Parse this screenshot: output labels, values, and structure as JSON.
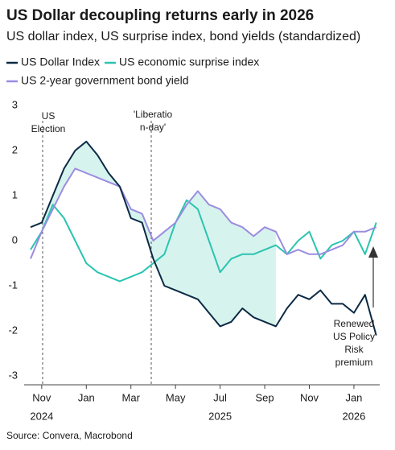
{
  "chart_data": {
    "type": "line",
    "title": "US Dollar decoupling returns early in 2026",
    "subtitle": "US dollar index, US surprise index, bond yields (standardized)",
    "categories": [
      null,
      "Nov",
      null,
      null,
      null,
      "Jan",
      null,
      null,
      null,
      "Mar",
      null,
      null,
      null,
      "May",
      null,
      null,
      null,
      "Jul",
      null,
      null,
      null,
      "Sep",
      null,
      null,
      null,
      "Nov",
      null,
      null,
      null,
      "Jan",
      null,
      null
    ],
    "year_labels": [
      "2024",
      "2025",
      "2026"
    ],
    "series": [
      {
        "name": "US Dollar Index",
        "color": "#0b2a45",
        "values": [
          0.3,
          0.4,
          1.0,
          1.6,
          2.0,
          2.2,
          1.9,
          1.5,
          1.2,
          0.5,
          0.4,
          -0.4,
          -1.0,
          -1.1,
          -1.2,
          -1.3,
          -1.6,
          -1.9,
          -1.8,
          -1.5,
          -1.7,
          -1.8,
          -1.9,
          -1.5,
          -1.2,
          -1.3,
          -1.1,
          -1.4,
          -1.4,
          -1.6,
          -1.2,
          -2.1
        ]
      },
      {
        "name": "US economic surprise index",
        "color": "#2bc4b0",
        "values": [
          -0.2,
          0.2,
          0.8,
          0.5,
          0.0,
          -0.5,
          -0.7,
          -0.8,
          -0.9,
          -0.8,
          -0.7,
          -0.5,
          -0.3,
          0.4,
          0.9,
          0.7,
          0.0,
          -0.7,
          -0.4,
          -0.3,
          -0.3,
          -0.2,
          -0.1,
          -0.3,
          0.0,
          0.2,
          -0.4,
          -0.1,
          0.0,
          0.2,
          -0.3,
          0.4
        ]
      },
      {
        "name": "US 2-year government bond yield",
        "color": "#9b8ce0",
        "values": [
          -0.4,
          0.2,
          0.7,
          1.2,
          1.6,
          1.5,
          1.4,
          1.3,
          1.2,
          0.7,
          0.6,
          0.0,
          0.2,
          0.4,
          0.8,
          1.1,
          0.8,
          0.7,
          0.4,
          0.3,
          0.1,
          0.3,
          0.2,
          -0.3,
          -0.2,
          -0.3,
          -0.3,
          -0.2,
          -0.1,
          0.2,
          0.2,
          0.3
        ]
      }
    ],
    "ylim": [
      -3,
      3
    ],
    "yticks": [
      -3,
      -2,
      -1,
      0,
      1,
      2,
      3
    ],
    "annotations": [
      {
        "text": [
          "US",
          "Election"
        ]
      },
      {
        "text": [
          "'Liberatio",
          "n-day'"
        ]
      },
      {
        "text": [
          "Renewed",
          "US Policy",
          "Risk",
          "premium"
        ]
      }
    ],
    "source": "Source: Convera, Macrobond"
  }
}
